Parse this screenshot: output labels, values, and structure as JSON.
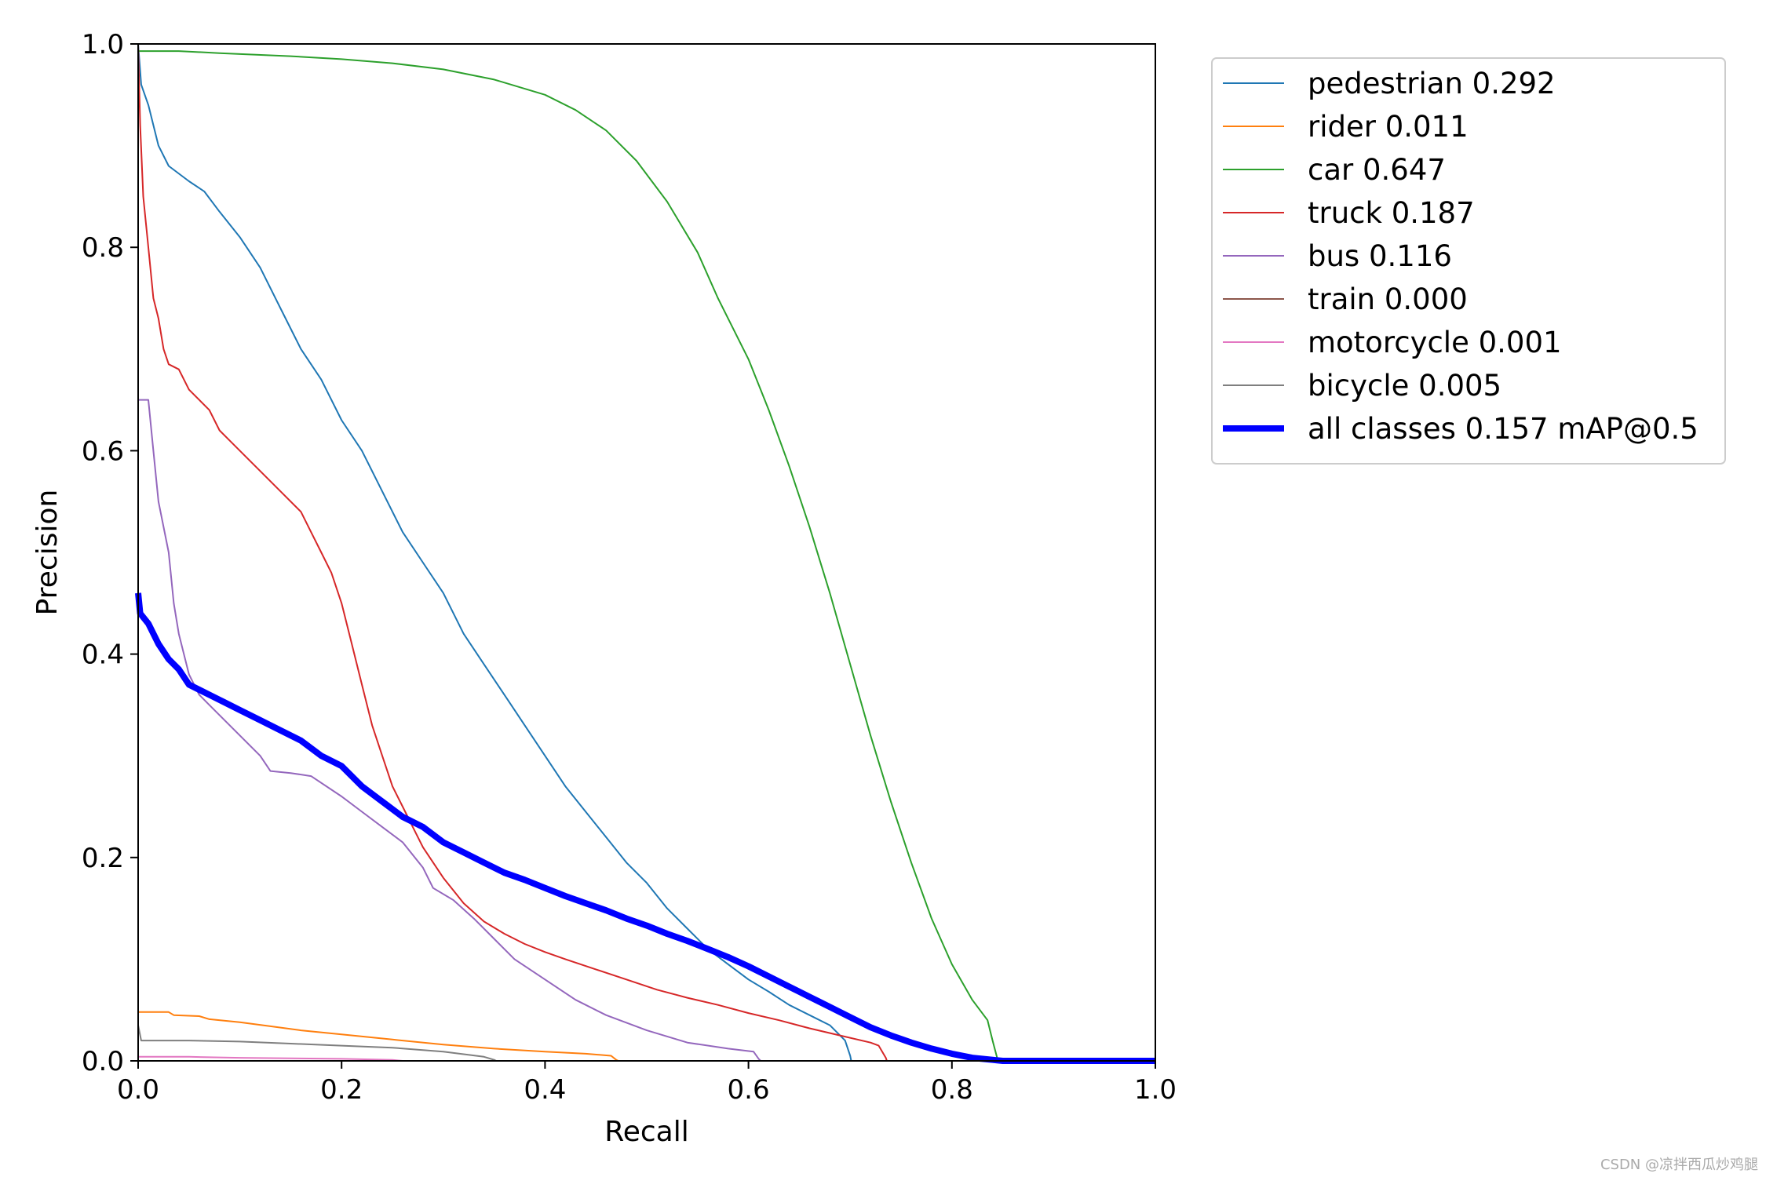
{
  "chart_data": {
    "type": "line",
    "xlabel": "Recall",
    "ylabel": "Precision",
    "xlim": [
      0,
      1
    ],
    "ylim": [
      0,
      1
    ],
    "grid": false,
    "legend_position": "outside-top-right",
    "x_ticks": [
      "0.0",
      "0.2",
      "0.4",
      "0.6",
      "0.8",
      "1.0"
    ],
    "y_ticks": [
      "0.0",
      "0.2",
      "0.4",
      "0.6",
      "0.8",
      "1.0"
    ],
    "series": [
      {
        "name": "pedestrian 0.292",
        "color": "#1f77b4",
        "width": 2,
        "points": [
          [
            0,
            1.0
          ],
          [
            0.003,
            0.96
          ],
          [
            0.01,
            0.94
          ],
          [
            0.02,
            0.9
          ],
          [
            0.03,
            0.88
          ],
          [
            0.05,
            0.865
          ],
          [
            0.065,
            0.855
          ],
          [
            0.08,
            0.835
          ],
          [
            0.1,
            0.81
          ],
          [
            0.12,
            0.78
          ],
          [
            0.14,
            0.74
          ],
          [
            0.16,
            0.7
          ],
          [
            0.18,
            0.67
          ],
          [
            0.2,
            0.63
          ],
          [
            0.22,
            0.6
          ],
          [
            0.24,
            0.56
          ],
          [
            0.26,
            0.52
          ],
          [
            0.28,
            0.49
          ],
          [
            0.3,
            0.46
          ],
          [
            0.32,
            0.42
          ],
          [
            0.34,
            0.39
          ],
          [
            0.36,
            0.36
          ],
          [
            0.38,
            0.33
          ],
          [
            0.4,
            0.3
          ],
          [
            0.42,
            0.27
          ],
          [
            0.44,
            0.245
          ],
          [
            0.46,
            0.22
          ],
          [
            0.48,
            0.195
          ],
          [
            0.5,
            0.175
          ],
          [
            0.52,
            0.15
          ],
          [
            0.54,
            0.13
          ],
          [
            0.56,
            0.11
          ],
          [
            0.58,
            0.095
          ],
          [
            0.6,
            0.08
          ],
          [
            0.62,
            0.068
          ],
          [
            0.64,
            0.055
          ],
          [
            0.66,
            0.045
          ],
          [
            0.68,
            0.035
          ],
          [
            0.695,
            0.02
          ],
          [
            0.7,
            0.005
          ],
          [
            0.701,
            0
          ]
        ]
      },
      {
        "name": "rider 0.011",
        "color": "#ff7f0e",
        "width": 2,
        "points": [
          [
            0,
            0.048
          ],
          [
            0.03,
            0.048
          ],
          [
            0.035,
            0.045
          ],
          [
            0.06,
            0.044
          ],
          [
            0.07,
            0.041
          ],
          [
            0.1,
            0.038
          ],
          [
            0.13,
            0.034
          ],
          [
            0.16,
            0.03
          ],
          [
            0.2,
            0.026
          ],
          [
            0.25,
            0.021
          ],
          [
            0.3,
            0.016
          ],
          [
            0.35,
            0.012
          ],
          [
            0.4,
            0.009
          ],
          [
            0.44,
            0.007
          ],
          [
            0.465,
            0.005
          ],
          [
            0.47,
            0.001
          ],
          [
            0.472,
            0
          ]
        ]
      },
      {
        "name": "car 0.647",
        "color": "#2ca02c",
        "width": 2,
        "points": [
          [
            0,
            0.993
          ],
          [
            0.04,
            0.993
          ],
          [
            0.08,
            0.991
          ],
          [
            0.15,
            0.988
          ],
          [
            0.2,
            0.985
          ],
          [
            0.25,
            0.981
          ],
          [
            0.3,
            0.975
          ],
          [
            0.35,
            0.965
          ],
          [
            0.4,
            0.95
          ],
          [
            0.43,
            0.935
          ],
          [
            0.46,
            0.915
          ],
          [
            0.49,
            0.885
          ],
          [
            0.52,
            0.845
          ],
          [
            0.55,
            0.795
          ],
          [
            0.57,
            0.75
          ],
          [
            0.6,
            0.69
          ],
          [
            0.62,
            0.64
          ],
          [
            0.64,
            0.585
          ],
          [
            0.66,
            0.525
          ],
          [
            0.68,
            0.46
          ],
          [
            0.7,
            0.39
          ],
          [
            0.72,
            0.32
          ],
          [
            0.74,
            0.255
          ],
          [
            0.76,
            0.195
          ],
          [
            0.78,
            0.14
          ],
          [
            0.8,
            0.095
          ],
          [
            0.82,
            0.06
          ],
          [
            0.835,
            0.04
          ],
          [
            0.84,
            0.02
          ],
          [
            0.845,
            0.001
          ],
          [
            0.846,
            0
          ]
        ]
      },
      {
        "name": "truck 0.187",
        "color": "#d62728",
        "width": 2,
        "points": [
          [
            0,
            1.0
          ],
          [
            0.002,
            0.92
          ],
          [
            0.005,
            0.85
          ],
          [
            0.01,
            0.8
          ],
          [
            0.015,
            0.75
          ],
          [
            0.02,
            0.73
          ],
          [
            0.025,
            0.7
          ],
          [
            0.03,
            0.685
          ],
          [
            0.04,
            0.68
          ],
          [
            0.05,
            0.66
          ],
          [
            0.06,
            0.65
          ],
          [
            0.07,
            0.64
          ],
          [
            0.08,
            0.62
          ],
          [
            0.09,
            0.61
          ],
          [
            0.1,
            0.6
          ],
          [
            0.12,
            0.58
          ],
          [
            0.14,
            0.56
          ],
          [
            0.16,
            0.54
          ],
          [
            0.17,
            0.52
          ],
          [
            0.18,
            0.5
          ],
          [
            0.19,
            0.48
          ],
          [
            0.2,
            0.45
          ],
          [
            0.21,
            0.41
          ],
          [
            0.22,
            0.37
          ],
          [
            0.23,
            0.33
          ],
          [
            0.24,
            0.3
          ],
          [
            0.25,
            0.27
          ],
          [
            0.26,
            0.25
          ],
          [
            0.27,
            0.23
          ],
          [
            0.28,
            0.21
          ],
          [
            0.3,
            0.18
          ],
          [
            0.32,
            0.155
          ],
          [
            0.34,
            0.137
          ],
          [
            0.36,
            0.125
          ],
          [
            0.38,
            0.115
          ],
          [
            0.4,
            0.107
          ],
          [
            0.42,
            0.1
          ],
          [
            0.45,
            0.09
          ],
          [
            0.48,
            0.08
          ],
          [
            0.51,
            0.07
          ],
          [
            0.54,
            0.062
          ],
          [
            0.57,
            0.055
          ],
          [
            0.6,
            0.047
          ],
          [
            0.63,
            0.04
          ],
          [
            0.66,
            0.032
          ],
          [
            0.69,
            0.025
          ],
          [
            0.72,
            0.018
          ],
          [
            0.728,
            0.015
          ],
          [
            0.735,
            0.003
          ],
          [
            0.736,
            0
          ]
        ]
      },
      {
        "name": "bus 0.116",
        "color": "#9467bd",
        "width": 2,
        "points": [
          [
            0,
            0.65
          ],
          [
            0.01,
            0.65
          ],
          [
            0.015,
            0.6
          ],
          [
            0.02,
            0.55
          ],
          [
            0.03,
            0.5
          ],
          [
            0.035,
            0.45
          ],
          [
            0.04,
            0.42
          ],
          [
            0.05,
            0.38
          ],
          [
            0.06,
            0.36
          ],
          [
            0.07,
            0.35
          ],
          [
            0.08,
            0.34
          ],
          [
            0.1,
            0.32
          ],
          [
            0.12,
            0.3
          ],
          [
            0.13,
            0.285
          ],
          [
            0.15,
            0.283
          ],
          [
            0.17,
            0.28
          ],
          [
            0.2,
            0.26
          ],
          [
            0.22,
            0.245
          ],
          [
            0.24,
            0.23
          ],
          [
            0.26,
            0.215
          ],
          [
            0.28,
            0.19
          ],
          [
            0.29,
            0.17
          ],
          [
            0.31,
            0.158
          ],
          [
            0.33,
            0.14
          ],
          [
            0.35,
            0.12
          ],
          [
            0.37,
            0.1
          ],
          [
            0.4,
            0.08
          ],
          [
            0.43,
            0.06
          ],
          [
            0.46,
            0.045
          ],
          [
            0.5,
            0.03
          ],
          [
            0.54,
            0.018
          ],
          [
            0.58,
            0.012
          ],
          [
            0.605,
            0.009
          ],
          [
            0.61,
            0.002
          ],
          [
            0.612,
            0
          ]
        ]
      },
      {
        "name": "train 0.000",
        "color": "#8c564b",
        "width": 2,
        "points": [
          [
            0,
            0
          ],
          [
            1,
            0
          ]
        ]
      },
      {
        "name": "motorcycle 0.001",
        "color": "#e377c2",
        "width": 2,
        "points": [
          [
            0,
            0.004
          ],
          [
            0.05,
            0.004
          ],
          [
            0.1,
            0.003
          ],
          [
            0.2,
            0.002
          ],
          [
            0.25,
            0.001
          ],
          [
            0.26,
            0
          ]
        ]
      },
      {
        "name": "bicycle 0.005",
        "color": "#7f7f7f",
        "width": 2,
        "points": [
          [
            0,
            0.035
          ],
          [
            0.003,
            0.02
          ],
          [
            0.05,
            0.02
          ],
          [
            0.1,
            0.019
          ],
          [
            0.15,
            0.017
          ],
          [
            0.2,
            0.015
          ],
          [
            0.25,
            0.013
          ],
          [
            0.3,
            0.009
          ],
          [
            0.34,
            0.004
          ],
          [
            0.35,
            0.001
          ],
          [
            0.352,
            0
          ]
        ]
      },
      {
        "name": "all classes 0.157 mAP@0.5",
        "color": "#0000ff",
        "width": 8,
        "points": [
          [
            0,
            0.46
          ],
          [
            0.002,
            0.44
          ],
          [
            0.01,
            0.43
          ],
          [
            0.02,
            0.41
          ],
          [
            0.03,
            0.395
          ],
          [
            0.04,
            0.385
          ],
          [
            0.05,
            0.37
          ],
          [
            0.06,
            0.365
          ],
          [
            0.07,
            0.36
          ],
          [
            0.08,
            0.355
          ],
          [
            0.1,
            0.345
          ],
          [
            0.12,
            0.335
          ],
          [
            0.14,
            0.325
          ],
          [
            0.16,
            0.315
          ],
          [
            0.18,
            0.3
          ],
          [
            0.2,
            0.29
          ],
          [
            0.22,
            0.27
          ],
          [
            0.24,
            0.255
          ],
          [
            0.26,
            0.24
          ],
          [
            0.28,
            0.23
          ],
          [
            0.3,
            0.215
          ],
          [
            0.32,
            0.205
          ],
          [
            0.34,
            0.195
          ],
          [
            0.36,
            0.185
          ],
          [
            0.38,
            0.178
          ],
          [
            0.4,
            0.17
          ],
          [
            0.42,
            0.162
          ],
          [
            0.44,
            0.155
          ],
          [
            0.46,
            0.148
          ],
          [
            0.48,
            0.14
          ],
          [
            0.5,
            0.133
          ],
          [
            0.52,
            0.125
          ],
          [
            0.54,
            0.118
          ],
          [
            0.56,
            0.11
          ],
          [
            0.58,
            0.102
          ],
          [
            0.6,
            0.093
          ],
          [
            0.62,
            0.083
          ],
          [
            0.64,
            0.073
          ],
          [
            0.66,
            0.063
          ],
          [
            0.68,
            0.053
          ],
          [
            0.7,
            0.043
          ],
          [
            0.72,
            0.033
          ],
          [
            0.74,
            0.025
          ],
          [
            0.76,
            0.018
          ],
          [
            0.78,
            0.012
          ],
          [
            0.8,
            0.007
          ],
          [
            0.82,
            0.003
          ],
          [
            0.84,
            0.001
          ],
          [
            0.85,
            0
          ],
          [
            1,
            0
          ]
        ]
      }
    ]
  },
  "watermark": "CSDN @凉拌西瓜炒鸡腿"
}
